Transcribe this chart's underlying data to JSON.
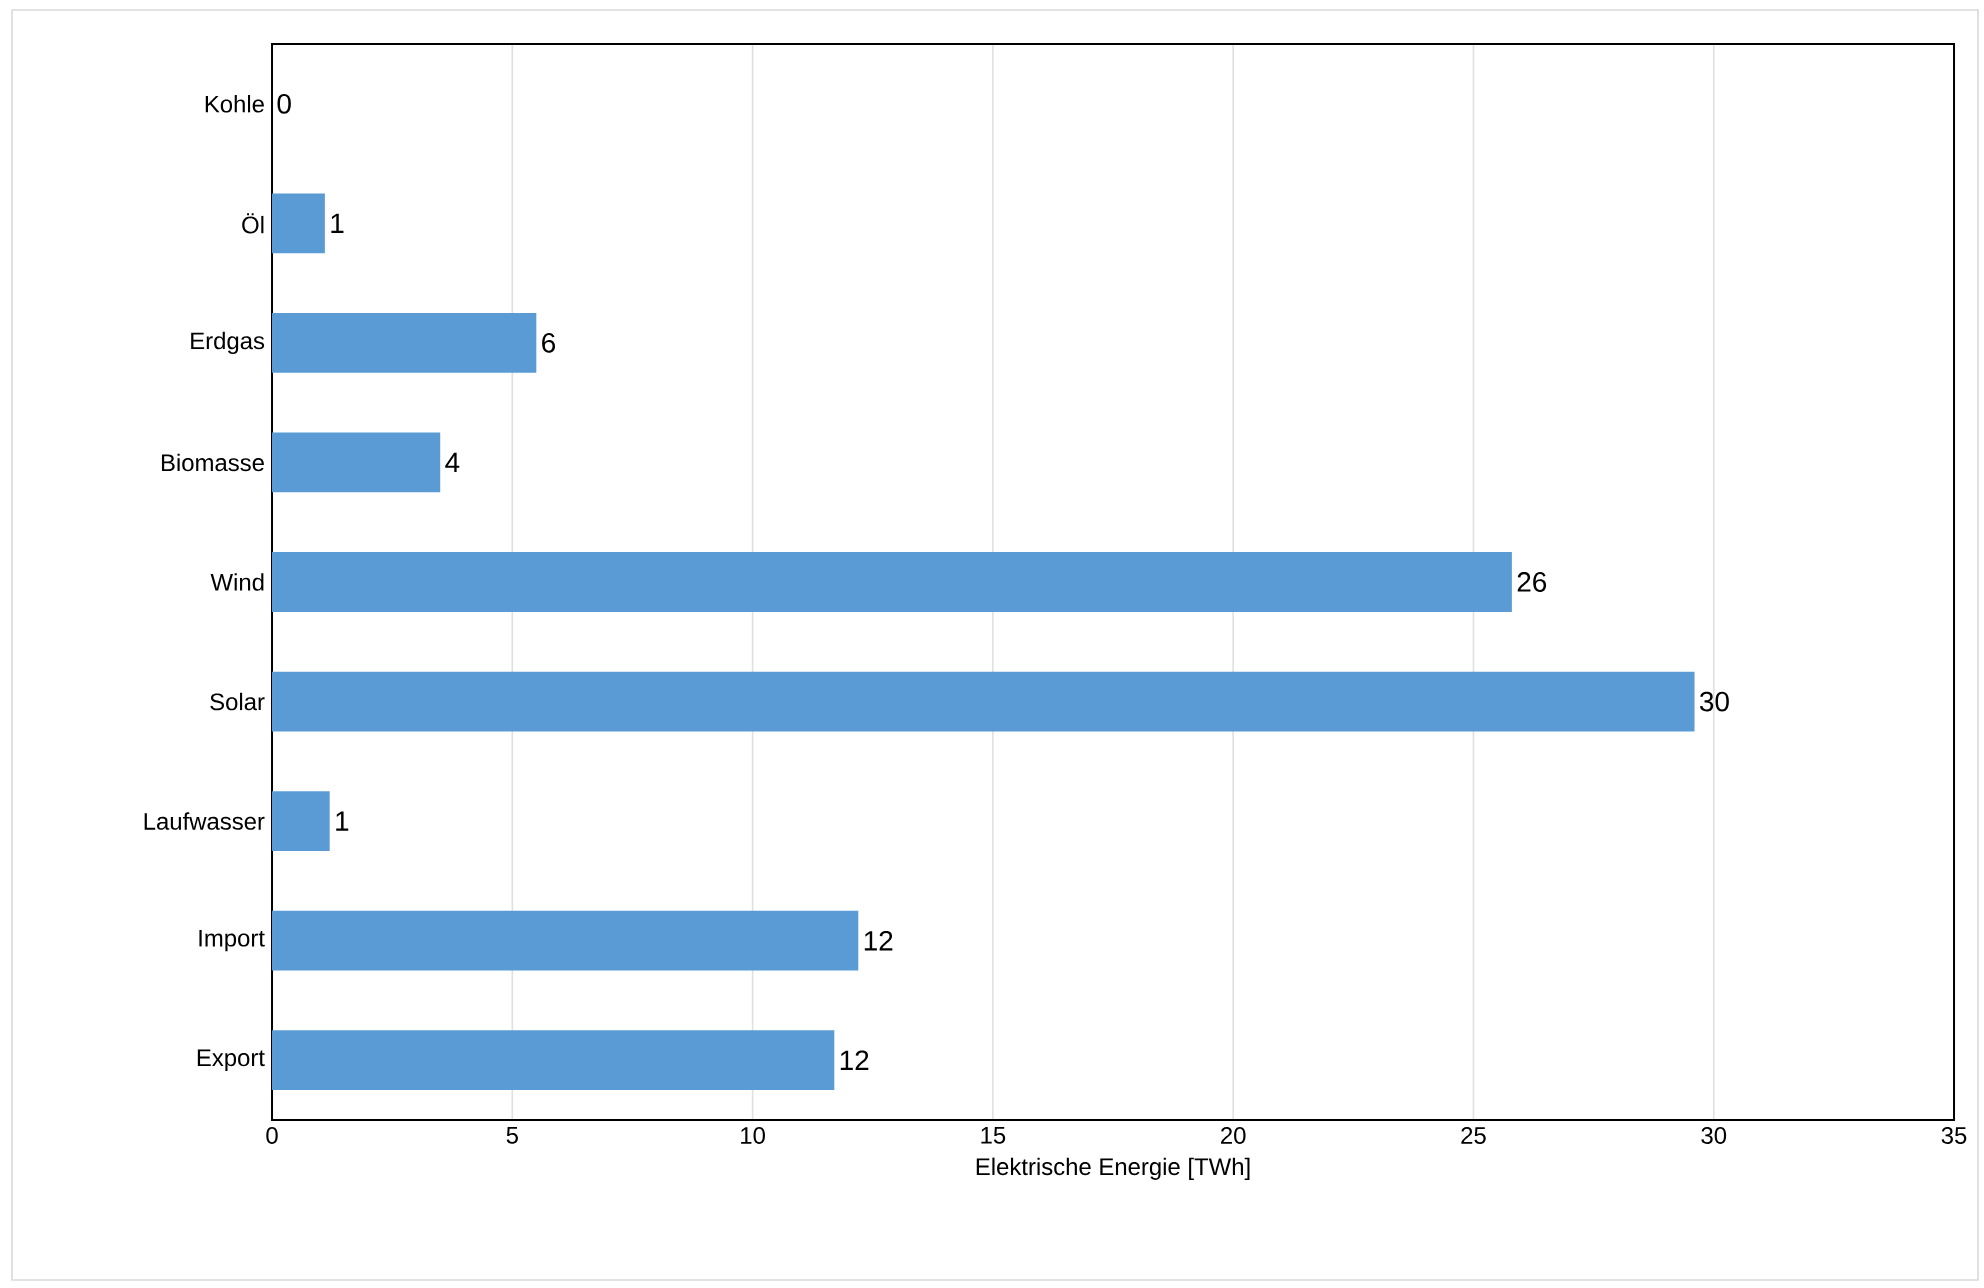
{
  "chart_data": {
    "type": "bar",
    "orientation": "horizontal",
    "categories": [
      "Kohle",
      "Öl",
      "Erdgas",
      "Biomasse",
      "Wind",
      "Solar",
      "Laufwasser",
      "Import",
      "Export"
    ],
    "values": [
      0,
      1.1,
      5.5,
      3.5,
      25.8,
      29.6,
      1.2,
      12.2,
      11.7
    ],
    "value_labels": [
      "0",
      "1",
      "6",
      "4",
      "26",
      "30",
      "1",
      "12",
      "12"
    ],
    "color": "#5b9bd5",
    "xlim": [
      0,
      35
    ],
    "xticks": [
      0,
      5,
      10,
      15,
      20,
      25,
      30,
      35
    ],
    "xlabel": "Elektrische Energie [TWh]",
    "grid": "x"
  }
}
